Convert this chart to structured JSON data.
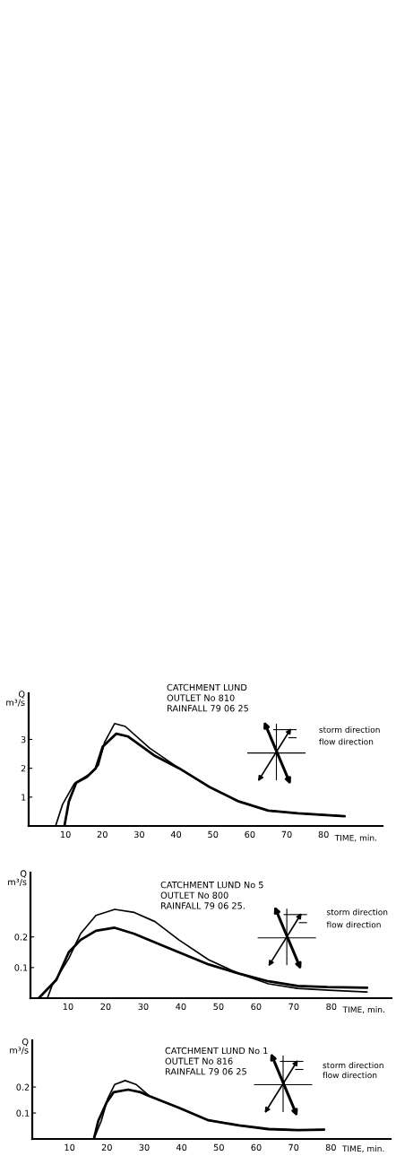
{
  "chart_data": [
    {
      "type": "line",
      "xlabel": "TIME, min.",
      "ylabel": "Q\nm³/s",
      "xlim": [
        0,
        96
      ],
      "ylim": [
        0,
        4.6
      ],
      "xticks": [
        10,
        20,
        30,
        40,
        50,
        60,
        70,
        80
      ],
      "yticks": [
        1,
        2,
        3
      ],
      "annotations": [
        "CATCHMENT LUND\nOUTLET No 810\nRAINFALL 79 06 25",
        "storm direction",
        "flow direction"
      ],
      "series": [
        {
          "color": "#000000",
          "x": [
            7.3,
            9.2,
            12.4,
            16.5,
            18.9,
            20.6,
            23.3,
            26.2,
            32.8,
            40.8,
            48.8,
            57,
            65,
            73,
            85.7
          ],
          "values": [
            0,
            0.75,
            1.47,
            1.8,
            2.1,
            2.9,
            3.55,
            3.45,
            2.7,
            2.0,
            1.37,
            0.85,
            0.53,
            0.44,
            0.34
          ]
        },
        {
          "color": "#000000",
          "x": [
            9.7,
            10.9,
            12.9,
            15.8,
            18.2,
            20.1,
            23.8,
            27,
            34,
            40.8,
            48.8,
            57,
            65,
            73,
            85.7
          ],
          "values": [
            0,
            0.85,
            1.5,
            1.7,
            2.0,
            2.75,
            3.2,
            3.1,
            2.45,
            2.0,
            1.37,
            0.85,
            0.53,
            0.44,
            0.34
          ]
        }
      ]
    },
    {
      "type": "line",
      "xlabel": "TIME, min.",
      "ylabel": "Q\nm³/s",
      "xlim": [
        0,
        96
      ],
      "ylim": [
        0,
        0.41
      ],
      "xticks": [
        10,
        20,
        30,
        40,
        50,
        60,
        70,
        80
      ],
      "yticks": [
        0.1,
        0.2
      ],
      "annotations": [
        "CATCHMENT LUND No 5\nOUTLET No 800\nRAINFALL 79 06 25.",
        "storm direction",
        "flow direction"
      ],
      "series": [
        {
          "color": "#000000",
          "x": [
            4.5,
            5.7,
            10.2,
            13.3,
            17.4,
            22.4,
            27.6,
            33.1,
            39.5,
            47.4,
            55.5,
            63.3,
            71,
            79.3,
            89.5
          ],
          "values": [
            0,
            0.04,
            0.13,
            0.21,
            0.27,
            0.29,
            0.28,
            0.25,
            0.19,
            0.125,
            0.08,
            0.047,
            0.032,
            0.026,
            0.02
          ]
        },
        {
          "color": "#000000",
          "x": [
            2.2,
            6.9,
            10.2,
            13.3,
            17.4,
            22.4,
            27.6,
            35.5,
            47.4,
            55.5,
            63.3,
            71,
            79,
            89.5
          ],
          "values": [
            0,
            0.06,
            0.15,
            0.19,
            0.22,
            0.23,
            0.21,
            0.17,
            0.11,
            0.08,
            0.055,
            0.04,
            0.036,
            0.034
          ]
        }
      ]
    },
    {
      "type": "line",
      "xlabel": "TIME, min.",
      "ylabel": "Q\nm³/s",
      "xlim": [
        0,
        96
      ],
      "ylim": [
        0,
        0.38
      ],
      "xticks": [
        10,
        20,
        30,
        40,
        50,
        60,
        70,
        80
      ],
      "yticks": [
        0.1,
        0.2
      ],
      "annotations": [
        "CATCHMENT LUND No 1\nOUTLET No 816\nRAINFALL 79 06 25",
        "storm direction",
        "flow direction"
      ],
      "series": [
        {
          "color": "#000000",
          "x": [
            16.5,
            18.5,
            20.2,
            22.1,
            24.9,
            27.8,
            31.4,
            39.3,
            47.2,
            55.4,
            63.3,
            71.2,
            78.2
          ],
          "values": [
            0,
            0.07,
            0.155,
            0.21,
            0.225,
            0.21,
            0.165,
            0.12,
            0.072,
            0.052,
            0.038,
            0.034,
            0.036
          ]
        },
        {
          "color": "#000000",
          "x": [
            16.5,
            17.7,
            19.9,
            21.8,
            25.7,
            29,
            31.4,
            39.3,
            47.2,
            55.4,
            63.3,
            71.2,
            78.2
          ],
          "values": [
            0,
            0.07,
            0.14,
            0.18,
            0.19,
            0.18,
            0.165,
            0.12,
            0.072,
            0.052,
            0.038,
            0.034,
            0.036
          ]
        }
      ]
    }
  ]
}
